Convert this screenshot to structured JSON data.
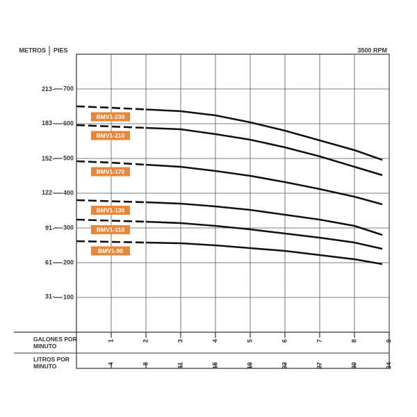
{
  "chart_data": {
    "type": "line",
    "y_label": "PIES",
    "y2_label": "METROS",
    "annotation": "3500 RPM",
    "x_label": "GALONES POR MINUTO",
    "x2_label": "LITROS POR MINUTO",
    "x": [
      0,
      1,
      2,
      3,
      4,
      5,
      6,
      7,
      8,
      8.8
    ],
    "xlim": [
      0,
      9
    ],
    "xticks": [
      1,
      2,
      3,
      4,
      5,
      6,
      7,
      8,
      9
    ],
    "x2lim": [
      0,
      34.07
    ],
    "x2ticks": [
      {
        "value": 3.79,
        "label": "4"
      },
      {
        "value": 7.57,
        "label": "8"
      },
      {
        "value": 11.36,
        "label": "11"
      },
      {
        "value": 15.14,
        "label": "15"
      },
      {
        "value": 18.93,
        "label": "19"
      },
      {
        "value": 22.71,
        "label": "23"
      },
      {
        "value": 26.5,
        "label": "27"
      },
      {
        "value": 30.28,
        "label": "30"
      },
      {
        "value": 34.07,
        "label": "34"
      }
    ],
    "ylim": [
      0,
      800
    ],
    "yticks": [
      100,
      200,
      300,
      400,
      500,
      600,
      700
    ],
    "y2lim": [
      0,
      243.84
    ],
    "y2ticks": [
      31,
      61,
      91,
      122,
      152,
      183,
      213
    ],
    "grid": true,
    "label_color": "#e8873a",
    "series": [
      {
        "name": "BMV1-230",
        "color": "#111111",
        "values": [
          650,
          646,
          641,
          636,
          624,
          604,
          580,
          552,
          524,
          496
        ]
      },
      {
        "name": "BMV1-210",
        "color": "#111111",
        "values": [
          596,
          592,
          588,
          584,
          570,
          554,
          532,
          506,
          476,
          452
        ]
      },
      {
        "name": "BMV1-170",
        "color": "#111111",
        "values": [
          492,
          488,
          482,
          476,
          464,
          450,
          432,
          412,
          390,
          368
        ]
      },
      {
        "name": "BMV1-130",
        "color": "#111111",
        "values": [
          380,
          377,
          374,
          370,
          362,
          352,
          338,
          324,
          306,
          280
        ]
      },
      {
        "name": "BMV1-110",
        "color": "#111111",
        "values": [
          324,
          321,
          318,
          314,
          306,
          296,
          284,
          272,
          258,
          240
        ]
      },
      {
        "name": "BMV1-90",
        "color": "#111111",
        "values": [
          262,
          260,
          258,
          256,
          250,
          242,
          234,
          222,
          210,
          196
        ]
      }
    ]
  }
}
